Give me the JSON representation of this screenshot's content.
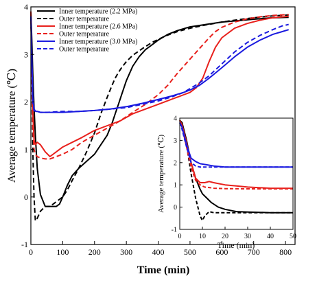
{
  "chart_data": [
    {
      "type": "line",
      "xlabel": "Time (min)",
      "ylabel": "Average temperature (℃)",
      "xlim": [
        0,
        830
      ],
      "ylim": [
        -1,
        4
      ],
      "xticks": [
        "0",
        "100",
        "200",
        "300",
        "400",
        "500",
        "600",
        "700",
        "800"
      ],
      "yticks": [
        "-1",
        "0",
        "1",
        "2",
        "3",
        "4"
      ],
      "grid": false,
      "legend_position": "top-left",
      "series": [
        {
          "name": "Inner temperature (2.2 MPa)",
          "color": "#000000",
          "dash": "solid",
          "x": [
            0,
            3,
            6,
            10,
            14,
            20,
            30,
            45,
            60,
            80,
            90,
            100,
            115,
            130,
            150,
            175,
            200,
            220,
            240,
            255,
            265,
            275,
            285,
            300,
            320,
            340,
            360,
            380,
            400,
            430,
            460,
            500,
            550,
            600,
            650,
            700,
            760,
            810
          ],
          "y": [
            3.9,
            3.3,
            2.6,
            1.9,
            1.3,
            0.6,
            0.05,
            -0.2,
            -0.2,
            -0.2,
            -0.15,
            0.0,
            0.25,
            0.45,
            0.6,
            0.75,
            0.9,
            1.1,
            1.3,
            1.55,
            1.75,
            1.95,
            2.15,
            2.45,
            2.75,
            2.95,
            3.1,
            3.2,
            3.3,
            3.42,
            3.5,
            3.58,
            3.63,
            3.68,
            3.71,
            3.74,
            3.77,
            3.78
          ]
        },
        {
          "name": "Outer temperature",
          "color": "#000000",
          "dash": "dash",
          "x": [
            0,
            3,
            6,
            10,
            14,
            20,
            30,
            45,
            60,
            80,
            100,
            115,
            130,
            150,
            175,
            200,
            220,
            240,
            255,
            265,
            275,
            285,
            300,
            320,
            350,
            380,
            420,
            460,
            500,
            550,
            600,
            650,
            700,
            760,
            810
          ],
          "y": [
            3.9,
            2.5,
            1.0,
            0.0,
            -0.5,
            -0.45,
            -0.3,
            -0.2,
            -0.2,
            -0.1,
            0.0,
            0.15,
            0.35,
            0.6,
            0.95,
            1.35,
            1.75,
            2.1,
            2.35,
            2.5,
            2.62,
            2.72,
            2.85,
            2.98,
            3.12,
            3.25,
            3.38,
            3.48,
            3.55,
            3.62,
            3.68,
            3.73,
            3.77,
            3.81,
            3.83
          ]
        },
        {
          "name": "Inner temperature (2.6 MPa)",
          "color": "#e8201c",
          "dash": "solid",
          "x": [
            0,
            3,
            6,
            10,
            14,
            20,
            30,
            45,
            60,
            80,
            100,
            130,
            160,
            200,
            240,
            280,
            320,
            360,
            400,
            420,
            440,
            460,
            480,
            500,
            520,
            540,
            560,
            580,
            600,
            640,
            680,
            720,
            760,
            810
          ],
          "y": [
            3.9,
            2.8,
            1.8,
            1.2,
            1.1,
            1.15,
            1.1,
            0.95,
            0.85,
            0.95,
            1.05,
            1.15,
            1.25,
            1.4,
            1.5,
            1.6,
            1.75,
            1.85,
            1.95,
            2.0,
            2.05,
            2.1,
            2.15,
            2.2,
            2.3,
            2.5,
            2.85,
            3.15,
            3.35,
            3.55,
            3.65,
            3.72,
            3.77,
            3.8
          ]
        },
        {
          "name": "Outer temperature",
          "color": "#e8201c",
          "dash": "dash",
          "x": [
            0,
            3,
            6,
            10,
            14,
            20,
            30,
            45,
            60,
            80,
            100,
            130,
            160,
            200,
            240,
            280,
            320,
            360,
            400,
            430,
            460,
            480,
            500,
            520,
            540,
            560,
            580,
            600,
            640,
            680,
            720,
            760,
            810
          ],
          "y": [
            3.9,
            2.6,
            1.5,
            1.0,
            0.9,
            0.85,
            0.82,
            0.8,
            0.8,
            0.85,
            0.9,
            1.0,
            1.15,
            1.3,
            1.45,
            1.6,
            1.78,
            1.95,
            2.15,
            2.35,
            2.6,
            2.75,
            2.9,
            3.05,
            3.2,
            3.35,
            3.48,
            3.57,
            3.68,
            3.75,
            3.79,
            3.82,
            3.84
          ]
        },
        {
          "name": "Inner temperature (3.0 MPa)",
          "color": "#1a1adf",
          "dash": "solid",
          "x": [
            0,
            3,
            6,
            10,
            15,
            20,
            30,
            50,
            100,
            150,
            200,
            250,
            300,
            350,
            400,
            440,
            480,
            500,
            530,
            560,
            600,
            640,
            680,
            720,
            760,
            790,
            810
          ],
          "y": [
            3.8,
            2.9,
            2.1,
            1.85,
            1.8,
            1.8,
            1.78,
            1.78,
            1.78,
            1.8,
            1.82,
            1.85,
            1.9,
            1.97,
            2.05,
            2.12,
            2.2,
            2.25,
            2.35,
            2.5,
            2.72,
            2.95,
            3.15,
            3.3,
            3.42,
            3.48,
            3.52
          ]
        },
        {
          "name": "Outer temperature",
          "color": "#1a1adf",
          "dash": "dash",
          "x": [
            0,
            3,
            6,
            10,
            15,
            20,
            30,
            50,
            100,
            150,
            200,
            250,
            300,
            350,
            400,
            440,
            480,
            500,
            530,
            560,
            600,
            640,
            680,
            720,
            760,
            790,
            810
          ],
          "y": [
            3.8,
            2.8,
            2.0,
            1.82,
            1.8,
            1.8,
            1.78,
            1.78,
            1.8,
            1.8,
            1.82,
            1.85,
            1.88,
            1.95,
            2.02,
            2.1,
            2.2,
            2.28,
            2.4,
            2.55,
            2.8,
            3.05,
            3.25,
            3.4,
            3.52,
            3.6,
            3.63
          ]
        }
      ]
    },
    {
      "type": "line",
      "xlabel": "Time (min)",
      "ylabel": "Average temperature (℃)",
      "xlim": [
        0,
        50
      ],
      "ylim": [
        -1,
        4
      ],
      "xticks": [
        "0",
        "10",
        "20",
        "30",
        "40",
        "50"
      ],
      "yticks": [
        "-1",
        "0",
        "1",
        "2",
        "3",
        "4"
      ],
      "grid": false,
      "series": [
        {
          "color": "#000000",
          "dash": "solid",
          "x": [
            0,
            1,
            3,
            5,
            7,
            9,
            10,
            12,
            14,
            17,
            20,
            25,
            30,
            40,
            50
          ],
          "y": [
            3.9,
            3.8,
            3.0,
            2.0,
            1.3,
            0.8,
            0.6,
            0.4,
            0.2,
            0.0,
            -0.1,
            -0.2,
            -0.22,
            -0.25,
            -0.25
          ]
        },
        {
          "color": "#000000",
          "dash": "dash",
          "x": [
            0,
            1,
            3,
            5,
            7,
            9,
            10,
            11,
            13,
            15,
            20,
            30,
            40,
            50
          ],
          "y": [
            3.9,
            3.6,
            2.8,
            1.5,
            0.4,
            -0.4,
            -0.6,
            -0.4,
            -0.2,
            -0.25,
            -0.25,
            -0.25,
            -0.25,
            -0.25
          ]
        },
        {
          "color": "#e8201c",
          "dash": "solid",
          "x": [
            0,
            1,
            3,
            5,
            7,
            9,
            11,
            13,
            15,
            20,
            25,
            30,
            40,
            50
          ],
          "y": [
            3.9,
            3.7,
            2.9,
            2.0,
            1.3,
            1.1,
            1.1,
            1.15,
            1.1,
            1.0,
            0.95,
            0.9,
            0.85,
            0.85
          ]
        },
        {
          "color": "#e8201c",
          "dash": "dash",
          "x": [
            0,
            1,
            3,
            5,
            7,
            9,
            11,
            13,
            15,
            20,
            30,
            40,
            50
          ],
          "y": [
            3.9,
            3.6,
            2.7,
            1.8,
            1.2,
            1.0,
            0.9,
            0.88,
            0.85,
            0.83,
            0.82,
            0.82,
            0.82
          ]
        },
        {
          "color": "#1a1adf",
          "dash": "solid",
          "x": [
            0,
            1,
            3,
            5,
            7,
            9,
            12,
            15,
            20,
            30,
            40,
            50
          ],
          "y": [
            3.8,
            3.6,
            2.8,
            2.2,
            2.05,
            1.95,
            1.9,
            1.85,
            1.8,
            1.8,
            1.8,
            1.8
          ]
        },
        {
          "color": "#1a1adf",
          "dash": "dash",
          "x": [
            0,
            1,
            3,
            5,
            7,
            9,
            12,
            15,
            20,
            30,
            40,
            50
          ],
          "y": [
            3.8,
            3.5,
            2.7,
            2.0,
            1.85,
            1.8,
            1.8,
            1.8,
            1.8,
            1.8,
            1.8,
            1.8
          ]
        }
      ]
    }
  ]
}
